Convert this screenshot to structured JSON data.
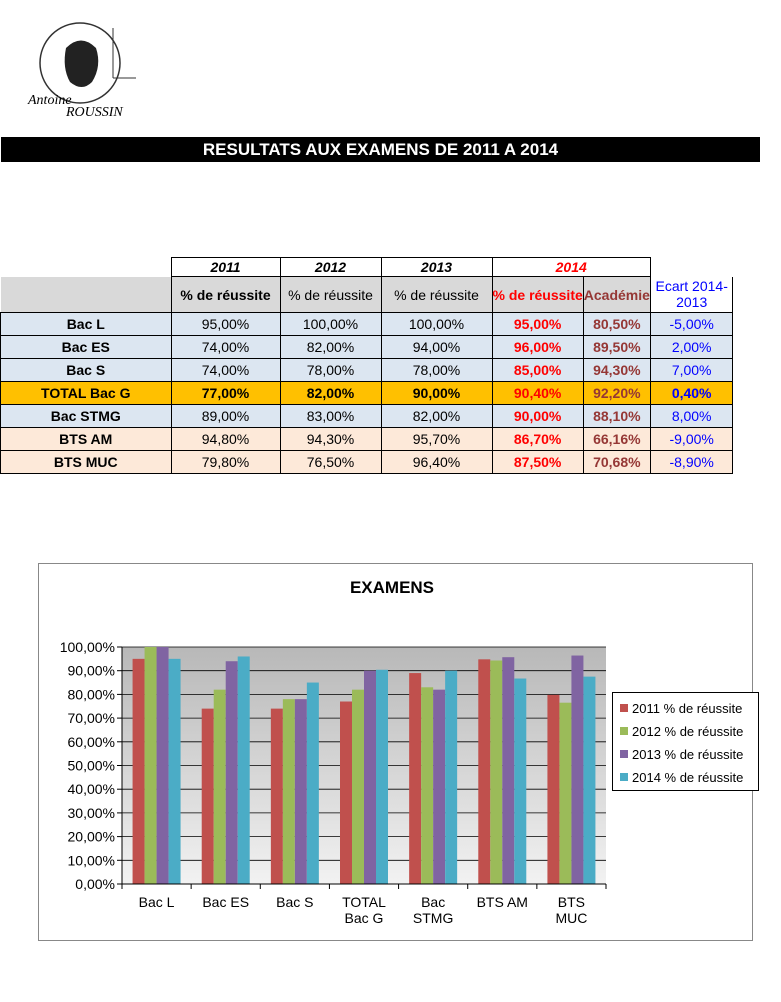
{
  "header": {
    "logo": [
      "Antoine",
      "ROUSSIN"
    ],
    "title": "RESULTATS AUX EXAMENS DE 2011 A 2014"
  },
  "table": {
    "years": [
      "2011",
      "2012",
      "2013",
      "2014"
    ],
    "columns": [
      "% de réussite",
      "% de réussite",
      "% de réussite",
      "% de réussite",
      "Académie",
      "Ecart 2014-2013"
    ],
    "rows": [
      [
        "Bac L",
        "95,00%",
        "100,00%",
        "100,00%",
        "95,00%",
        "80,50%",
        "-5,00%"
      ],
      [
        "Bac ES",
        "74,00%",
        "82,00%",
        "94,00%",
        "96,00%",
        "89,50%",
        "2,00%"
      ],
      [
        "Bac S",
        "74,00%",
        "78,00%",
        "78,00%",
        "85,00%",
        "94,30%",
        "7,00%"
      ],
      [
        "TOTAL Bac G",
        "77,00%",
        "82,00%",
        "90,00%",
        "90,40%",
        "92,20%",
        "0,40%"
      ],
      [
        "Bac STMG",
        "89,00%",
        "83,00%",
        "82,00%",
        "90,00%",
        "88,10%",
        "8,00%"
      ],
      [
        "BTS AM",
        "94,80%",
        "94,30%",
        "95,70%",
        "86,70%",
        "66,16%",
        "-9,00%"
      ],
      [
        "BTS MUC",
        "79,80%",
        "76,50%",
        "96,40%",
        "87,50%",
        "70,68%",
        "-8,90%"
      ]
    ]
  },
  "chart_data": {
    "type": "bar",
    "title": "EXAMENS",
    "categories": [
      "Bac L",
      "Bac ES",
      "Bac S",
      "TOTAL Bac G",
      "Bac STMG",
      "BTS AM",
      "BTS MUC"
    ],
    "series": [
      {
        "name": "2011 % de réussite",
        "color": "#c0504d",
        "values": [
          95,
          74,
          74,
          77,
          89,
          94.8,
          79.8
        ]
      },
      {
        "name": "2012 % de réussite",
        "color": "#9bbb59",
        "values": [
          100,
          82,
          78,
          82,
          83,
          94.3,
          76.5
        ]
      },
      {
        "name": "2013 % de réussite",
        "color": "#8064a2",
        "values": [
          100,
          94,
          78,
          90,
          82,
          95.7,
          96.4
        ]
      },
      {
        "name": "2014 % de réussite",
        "color": "#4bacc6",
        "values": [
          95,
          96,
          85,
          90.4,
          90,
          86.7,
          87.5
        ]
      }
    ],
    "ylim": [
      0,
      100
    ],
    "yticks": [
      {
        "value": 0,
        "label": "0,00%"
      },
      {
        "value": 10,
        "label": "10,00%"
      },
      {
        "value": 20,
        "label": "20,00%"
      },
      {
        "value": 30,
        "label": "30,00%"
      },
      {
        "value": 40,
        "label": "40,00%"
      },
      {
        "value": 50,
        "label": "50,00%"
      },
      {
        "value": 60,
        "label": "60,00%"
      },
      {
        "value": 70,
        "label": "70,00%"
      },
      {
        "value": 80,
        "label": "80,00%"
      },
      {
        "value": 90,
        "label": "90,00%"
      },
      {
        "value": 100,
        "label": "100,00%"
      }
    ],
    "grid": true,
    "legend": "right"
  }
}
